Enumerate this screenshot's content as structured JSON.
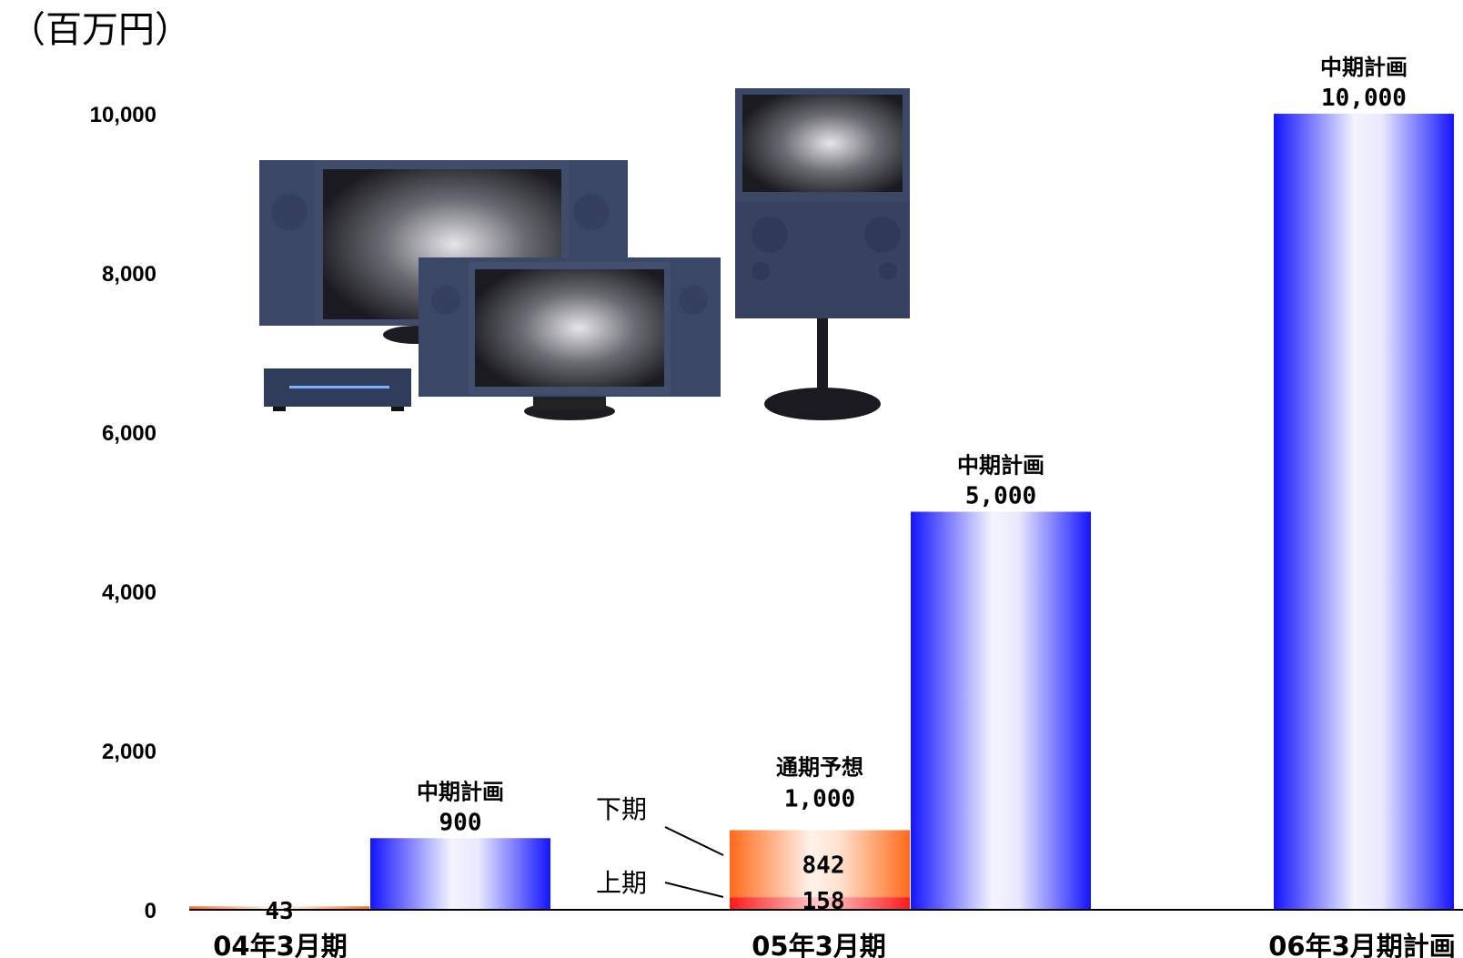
{
  "unit_label": "（百万円）",
  "chart_data": {
    "type": "bar",
    "ylim": [
      0,
      10000
    ],
    "yticks": [
      "0",
      "2,000",
      "4,000",
      "6,000",
      "8,000",
      "10,000"
    ],
    "grid": false,
    "categories": [
      "04年3月期",
      "05年3月期",
      "06年3月期計画"
    ],
    "bars": [
      {
        "category": "04年3月期",
        "kind": "actual",
        "value": 43,
        "value_label": "43"
      },
      {
        "category": "04年3月期",
        "kind": "plan",
        "value": 900,
        "label": "中期計画",
        "value_label": "900"
      },
      {
        "category": "05年3月期",
        "kind": "forecast",
        "value": 1000,
        "label": "通期予想",
        "value_label": "1,000",
        "segments": [
          {
            "name": "上期",
            "value": 158,
            "value_label": "158"
          },
          {
            "name": "下期",
            "value": 842,
            "value_label": "842"
          }
        ]
      },
      {
        "category": "05年3月期",
        "kind": "plan",
        "value": 5000,
        "label": "中期計画",
        "value_label": "5,000"
      },
      {
        "category": "06年3月期計画",
        "kind": "plan",
        "value": 10000,
        "label": "中期計画",
        "value_label": "10,000"
      }
    ]
  },
  "colors": {
    "plan_edge": "#1a1aff",
    "plan_center": "#ffffff",
    "forecast_edge": "#ff6a1a",
    "forecast_center": "#ffffff",
    "first_half": "#ff2a2a",
    "axis": "#000000"
  },
  "image": {
    "name": "lcd-tv-products-photo"
  }
}
